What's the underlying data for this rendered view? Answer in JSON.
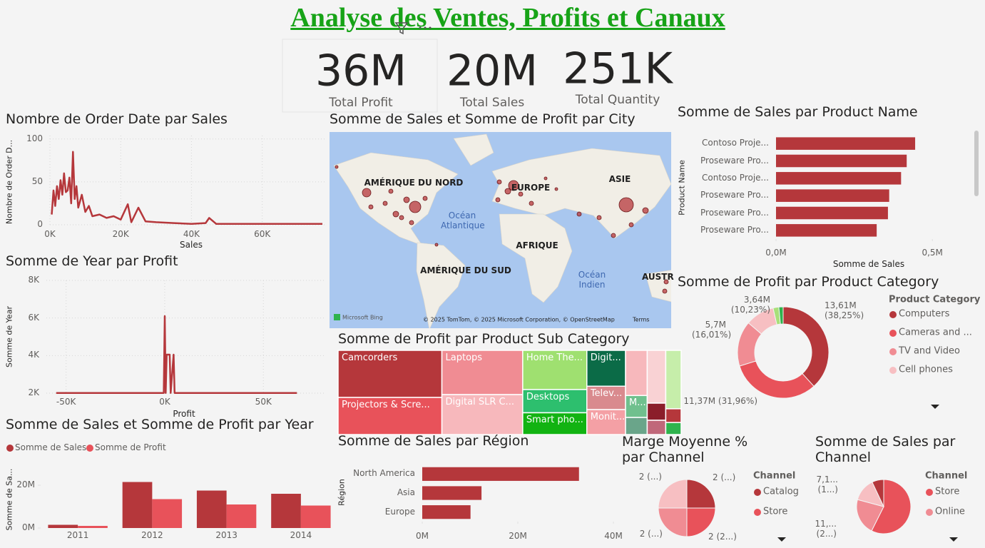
{
  "header": {
    "title": "Analyse des Ventes, Profits et Canaux"
  },
  "kpis": [
    {
      "value": "36M",
      "label": "Total Profit"
    },
    {
      "value": "20M",
      "label": "Total Sales"
    },
    {
      "value": "251K",
      "label": "Total Quantity"
    }
  ],
  "chart_data": [
    {
      "type": "line",
      "title": "Nombre de Order Date par Sales",
      "xlabel": "Sales",
      "ylabel": "Nombre de Order D...",
      "color": "#b5373b",
      "grid": true,
      "x": [
        500,
        1000,
        1500,
        2000,
        2500,
        3000,
        3500,
        4000,
        4500,
        5000,
        5500,
        6000,
        6500,
        7000,
        7500,
        8000,
        9000,
        10000,
        11000,
        12000,
        14000,
        16000,
        18000,
        20000,
        22000,
        23000,
        25000,
        27000,
        30000,
        35000,
        40000,
        44000,
        45000,
        47000,
        55000,
        65000,
        77000
      ],
      "values": [
        12,
        40,
        22,
        45,
        30,
        52,
        35,
        60,
        38,
        40,
        55,
        25,
        85,
        30,
        45,
        20,
        35,
        15,
        22,
        10,
        12,
        8,
        10,
        6,
        24,
        3,
        20,
        4,
        3,
        2,
        1,
        2,
        8,
        1,
        1,
        1,
        1
      ],
      "xlim": [
        0,
        78000
      ],
      "xticks": [
        {
          "value": 0,
          "label": "0K"
        },
        {
          "value": 20000,
          "label": "20K"
        },
        {
          "value": 40000,
          "label": "40K"
        },
        {
          "value": 60000,
          "label": "60K"
        }
      ],
      "ylim": [
        0,
        104
      ],
      "yticks": [
        0,
        50,
        100
      ]
    },
    {
      "type": "line",
      "title": "Somme de Year par Profit",
      "xlabel": "Profit",
      "ylabel": "Somme de Year",
      "color": "#b5373b",
      "grid": true,
      "x": [
        -55000,
        -10000,
        -1000,
        -500,
        0,
        500,
        1000,
        1500,
        2000,
        2500,
        3000,
        4500,
        5000,
        67000
      ],
      "values": [
        2010,
        2010,
        2010,
        2010,
        6100,
        2010,
        4050,
        4050,
        4050,
        4050,
        2010,
        4050,
        2010,
        2010
      ],
      "xlim": [
        -60000,
        81000
      ],
      "xticks": [
        {
          "value": -50000,
          "label": "-50K"
        },
        {
          "value": 0,
          "label": "0K"
        },
        {
          "value": 50000,
          "label": "50K"
        }
      ],
      "ylim": [
        2000,
        8000
      ],
      "yticks": [
        {
          "value": 2000,
          "label": "2K"
        },
        {
          "value": 4000,
          "label": "4K"
        },
        {
          "value": 6000,
          "label": "6K"
        },
        {
          "value": 8000,
          "label": "8K"
        }
      ]
    },
    {
      "type": "bar",
      "title": "Somme de Sales et Somme de Profit par Year",
      "ylabel": "Somme de Sa...",
      "grid": false,
      "categories": [
        "2011",
        "2012",
        "2013",
        "2014"
      ],
      "series": [
        {
          "name": "Somme de Sales",
          "color": "#b5373b",
          "values": [
            1500000,
            21500000,
            17500000,
            16000000
          ]
        },
        {
          "name": "Somme de Profit",
          "color": "#e8525a",
          "values": [
            1000000,
            13500000,
            11000000,
            10500000
          ]
        }
      ],
      "ylim": [
        0,
        30000000
      ],
      "yticks": [
        {
          "value": 0,
          "label": "0M"
        },
        {
          "value": 20000000,
          "label": "20M"
        }
      ]
    },
    {
      "type": "map",
      "title": "Somme de Sales et Somme de Profit par City",
      "labels": [
        "AMÉRIQUE DU NORD",
        "EUROPE",
        "ASIE",
        "Océan Atlantique",
        "AFRIQUE",
        "AMÉRIQUE DU SUD",
        "Océan Indien",
        "AUSTR"
      ],
      "provider": "Microsoft Bing",
      "attribution": "© 2025 TomTom, © 2025 Microsoft Corporation, © OpenStreetMap",
      "terms": "Terms"
    },
    {
      "type": "bar",
      "horizontal": true,
      "title": "Somme de Sales par Product Name",
      "xlabel": "Somme de Sales",
      "ylabel": "Product Name",
      "color": "#b5373b",
      "grid": false,
      "categories": [
        "Contoso Proje...",
        "Proseware Pro...",
        "Contoso Proje...",
        "Proseware Pro...",
        "Proseware Pro...",
        "Proseware Pro..."
      ],
      "values": [
        445000,
        418000,
        400000,
        362000,
        358000,
        322000
      ],
      "xlim": [
        0,
        600000
      ],
      "xticks": [
        {
          "value": 0,
          "label": "0,0M"
        },
        {
          "value": 500000,
          "label": "0,5M"
        }
      ]
    },
    {
      "type": "donut",
      "title": "Somme de Profit par Product Category",
      "legend_title": "Product Category",
      "categories": [
        "Computers",
        "Cameras and ...",
        "TV and Video",
        "Cell phones",
        null,
        null
      ],
      "values": [
        13.61,
        11.37,
        5.7,
        3.64,
        0.72,
        0.54
      ],
      "value_labels": [
        "13,61M (38,25%)",
        "11,37M (31,96%)",
        "5,7M (16,01%)",
        "3,64M (10,23%)",
        null,
        null
      ],
      "colors": [
        "#b5373b",
        "#e8525a",
        "#f08c93",
        "#f7bfc2",
        "#a8e07a",
        "#2fb34d"
      ]
    },
    {
      "type": "treemap",
      "title": "Somme de Profit par Product Sub Category",
      "categories": [
        "Camcorders",
        "Projectors & Scre...",
        "Laptops",
        "Digital SLR C...",
        "Home The...",
        "Desktops",
        "Smart pho...",
        "Digit...",
        "Telev...",
        "Monit...",
        null,
        null,
        null,
        "M...",
        null,
        null,
        null,
        null,
        null
      ],
      "values": [
        9240,
        7280,
        6758,
        6104,
        4752,
        2816,
        2640,
        2622,
        1710,
        1824,
        1850,
        1850,
        1700,
        900,
        700,
        600,
        500,
        400,
        350
      ],
      "colors": [
        "#b5373b",
        "#e8525a",
        "#f08c93",
        "#f7b8bc",
        "#9fe070",
        "#2dbf6e",
        "#12b312",
        "#0b6b47",
        "#d98a8e",
        "#f4a0a5",
        "#f7b8bc",
        "#f9d2d4",
        "#c6eeaa",
        "#70c08e",
        "#6aa58a",
        "#8b1e2a",
        "#c0687a",
        "#b5373b",
        "#2fb34d"
      ]
    },
    {
      "type": "bar",
      "horizontal": true,
      "title": "Somme de Sales par Région",
      "ylabel": "Région",
      "color": "#b5373b",
      "grid": false,
      "categories": [
        "North America",
        "Asia",
        "Europe"
      ],
      "values": [
        32800000,
        12400000,
        10100000
      ],
      "xlim": [
        0,
        40000000
      ],
      "xticks": [
        {
          "value": 0,
          "label": "0M"
        },
        {
          "value": 20000000,
          "label": "20M"
        },
        {
          "value": 40000000,
          "label": "40M"
        }
      ]
    },
    {
      "type": "pie",
      "title": "Marge Moyenne % par Channel",
      "legend_title": "Channel",
      "categories": [
        "Catalog",
        "Store",
        null,
        null
      ],
      "values": [
        2,
        2,
        2,
        2
      ],
      "value_labels": [
        "2 (...)",
        "2 (2...)",
        "2 (...)",
        "2 (...)"
      ],
      "colors": [
        "#b5373b",
        "#e8525a",
        "#f08c93",
        "#f7bfc2"
      ]
    },
    {
      "type": "pie",
      "title": "Somme de Sales par Channel",
      "legend_title": "Channel",
      "categories": [
        "Store",
        "Online",
        null,
        null
      ],
      "values": [
        29.5,
        11.2,
        7.1,
        3.6
      ],
      "value_labels": [
        null,
        "11,... (2...)",
        "7,1... (1...)",
        null
      ],
      "colors": [
        "#e8525a",
        "#f08c93",
        "#f7bfc2",
        "#b5373b"
      ]
    }
  ]
}
